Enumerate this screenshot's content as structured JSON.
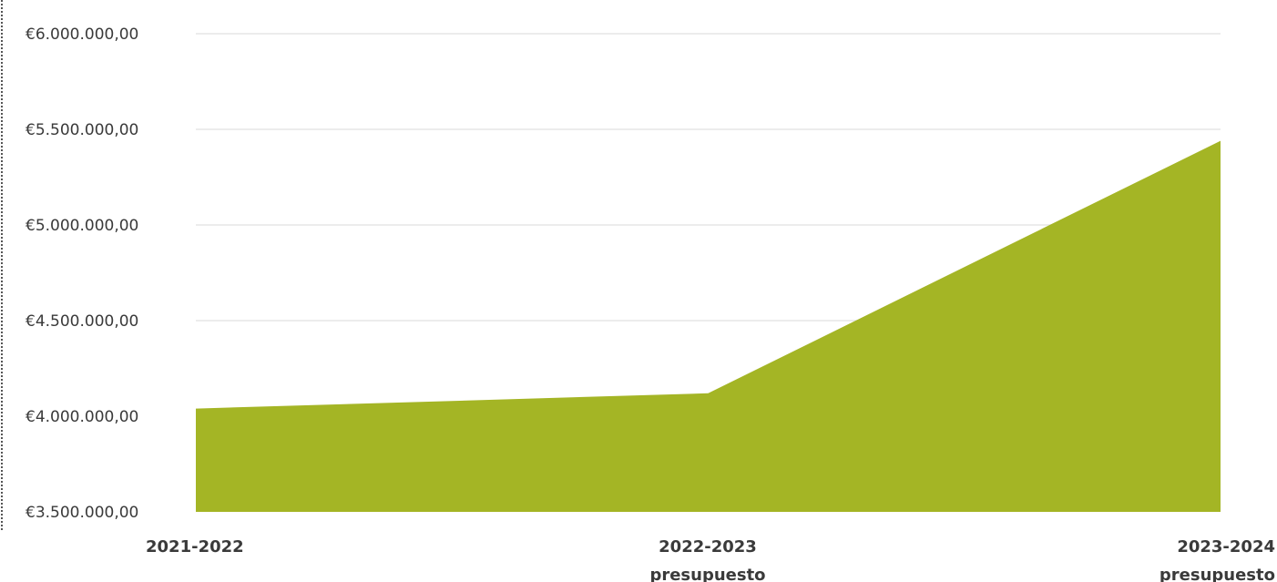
{
  "chart_data": {
    "type": "area",
    "title": "",
    "xlabel": "",
    "ylabel": "",
    "categories": [
      [
        "2021-2022"
      ],
      [
        "2022-2023",
        "presupuesto"
      ],
      [
        "2023-2024",
        "presupuesto"
      ]
    ],
    "values": [
      4040000,
      4120000,
      5440000
    ],
    "ylim": [
      3500000,
      6000000
    ],
    "yticks": [
      3500000,
      4000000,
      4500000,
      5000000,
      5500000,
      6000000
    ],
    "ytick_labels": [
      "€3.500.000,00",
      "€4.000.000,00",
      "€4.500.000,00",
      "€5.000.000,00",
      "€5.500.000,00",
      "€6.000.000,00"
    ],
    "grid": true,
    "legend": "none",
    "colors": {
      "area": "#a4b525",
      "grid": "#e6e6e6",
      "text": "#3a3a3a"
    }
  }
}
